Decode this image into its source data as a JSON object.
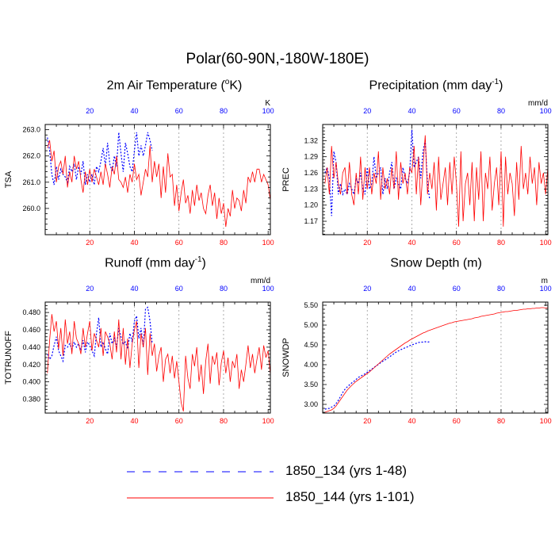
{
  "main_title": "Polar(60-90N,-180W-180E)",
  "legend": [
    {
      "label": "1850_134 (yrs 1-48)",
      "color": "#0000ff",
      "style": "dashed"
    },
    {
      "label": "1850_144 (yrs 1-101)",
      "color": "#ff0000",
      "style": "solid"
    }
  ],
  "chart_data": [
    {
      "type": "line",
      "title": "2m Air Temperature (",
      "title_sup": "o",
      "title_tail": "K)",
      "ylabel": "TSA",
      "top_unit": "K",
      "xlim": [
        0,
        101
      ],
      "ylim": [
        259.0,
        263.2
      ],
      "yticks": [
        "263.0",
        "262.0",
        "261.0",
        "260.0"
      ],
      "ytick_values": [
        263.0,
        262.0,
        261.0,
        260.0
      ],
      "xticks": [
        "20",
        "40",
        "60",
        "80",
        "100"
      ],
      "grid_x": [
        20,
        40,
        60,
        80
      ],
      "top_tick_color": "#0000ff",
      "bottom_tick_color": "#ff0000",
      "series": [
        {
          "color": "#0000ff",
          "style": "dashed",
          "values": [
            262.7,
            262.2,
            261.3,
            260.9,
            261.6,
            261.1,
            261.5,
            261.3,
            261.2,
            261.0,
            261.6,
            261.4,
            261.7,
            261.1,
            261.6,
            261.3,
            261.8,
            260.9,
            261.3,
            261.0,
            261.3,
            260.9,
            261.6,
            261.4,
            261.8,
            262.3,
            261.6,
            262.5,
            261.7,
            261.4,
            262.0,
            261.6,
            262.9,
            262.1,
            261.4,
            262.5,
            262.1,
            261.6,
            261.4,
            262.2,
            262.9,
            262.0,
            262.4,
            262.0,
            262.4,
            262.9,
            262.6,
            262.2
          ]
        },
        {
          "color": "#ff0000",
          "style": "solid",
          "values": [
            262.3,
            262.6,
            261.8,
            262.2,
            261.0,
            261.6,
            261.8,
            261.3,
            262.0,
            260.8,
            261.4,
            261.0,
            262.0,
            261.5,
            261.8,
            261.1,
            260.6,
            261.4,
            260.9,
            261.5,
            261.0,
            261.5,
            261.2,
            260.9,
            261.4,
            260.9,
            261.7,
            261.3,
            260.8,
            261.6,
            261.3,
            262.0,
            261.1,
            261.0,
            260.8,
            261.2,
            260.6,
            261.3,
            261.0,
            261.7,
            261.1,
            261.3,
            260.5,
            261.0,
            261.5,
            261.2,
            262.4,
            261.0,
            261.8,
            261.2,
            261.7,
            260.4,
            261.6,
            260.6,
            262.1,
            261.2,
            261.3,
            260.1,
            260.9,
            259.9,
            260.6,
            261.1,
            260.2,
            260.5,
            259.8,
            260.7,
            260.1,
            260.9,
            260.3,
            260.6,
            260.0,
            259.8,
            260.5,
            260.9,
            260.1,
            260.6,
            259.6,
            260.4,
            259.8,
            260.2,
            259.3,
            260.0,
            259.7,
            260.7,
            260.0,
            260.4,
            260.3,
            259.9,
            260.7,
            260.2,
            261.2,
            261.0,
            261.4,
            261.0,
            261.5,
            261.5,
            261.0,
            261.3,
            261.1,
            260.9,
            260.3
          ]
        }
      ]
    },
    {
      "type": "line",
      "title": "Precipitation (mm day",
      "title_sup": "-1",
      "title_tail": ")",
      "ylabel": "PREC",
      "top_unit": "mm/d",
      "xlim": [
        0,
        101
      ],
      "ylim": [
        1.145,
        1.35
      ],
      "yticks": [
        "1.32",
        "1.29",
        "1.26",
        "1.23",
        "1.20",
        "1.17"
      ],
      "ytick_values": [
        1.32,
        1.29,
        1.26,
        1.23,
        1.2,
        1.17
      ],
      "xticks": [
        "20",
        "40",
        "60",
        "80",
        "100"
      ],
      "grid_x": [
        20,
        40,
        60,
        80
      ],
      "top_tick_color": "#0000ff",
      "bottom_tick_color": "#ff0000",
      "series": [
        {
          "color": "#0000ff",
          "style": "dashed",
          "values": [
            1.26,
            1.27,
            1.25,
            1.18,
            1.3,
            1.28,
            1.22,
            1.24,
            1.22,
            1.23,
            1.22,
            1.24,
            1.23,
            1.22,
            1.25,
            1.24,
            1.26,
            1.23,
            1.22,
            1.27,
            1.23,
            1.24,
            1.29,
            1.25,
            1.26,
            1.27,
            1.22,
            1.25,
            1.23,
            1.26,
            1.28,
            1.23,
            1.25,
            1.24,
            1.23,
            1.27,
            1.25,
            1.24,
            1.26,
            1.34,
            1.27,
            1.28,
            1.29,
            1.25,
            1.3,
            1.32,
            1.24,
            1.21
          ]
        },
        {
          "color": "#ff0000",
          "style": "solid",
          "values": [
            1.24,
            1.27,
            1.22,
            1.31,
            1.25,
            1.28,
            1.24,
            1.22,
            1.26,
            1.27,
            1.22,
            1.28,
            1.22,
            1.2,
            1.26,
            1.22,
            1.29,
            1.21,
            1.27,
            1.23,
            1.27,
            1.22,
            1.26,
            1.24,
            1.3,
            1.21,
            1.27,
            1.23,
            1.25,
            1.22,
            1.27,
            1.23,
            1.3,
            1.21,
            1.28,
            1.24,
            1.26,
            1.22,
            1.27,
            1.26,
            1.31,
            1.22,
            1.29,
            1.2,
            1.27,
            1.33,
            1.22,
            1.26,
            1.23,
            1.28,
            1.19,
            1.29,
            1.21,
            1.24,
            1.27,
            1.2,
            1.28,
            1.22,
            1.29,
            1.24,
            1.16,
            1.3,
            1.17,
            1.24,
            1.26,
            1.2,
            1.28,
            1.17,
            1.27,
            1.21,
            1.3,
            1.17,
            1.26,
            1.23,
            1.29,
            1.19,
            1.24,
            1.27,
            1.2,
            1.3,
            1.16,
            1.29,
            1.22,
            1.26,
            1.24,
            1.18,
            1.28,
            1.21,
            1.31,
            1.23,
            1.26,
            1.22,
            1.29,
            1.24,
            1.27,
            1.2,
            1.28,
            1.24,
            1.26,
            1.22,
            1.27
          ]
        }
      ]
    },
    {
      "type": "line",
      "title": "Runoff (mm day",
      "title_sup": "-1",
      "title_tail": ")",
      "ylabel": "TOTRUNOFF",
      "top_unit": "mm/d",
      "xlim": [
        0,
        101
      ],
      "ylim": [
        0.364,
        0.492
      ],
      "yticks": [
        "0.480",
        "0.460",
        "0.440",
        "0.420",
        "0.400",
        "0.380"
      ],
      "ytick_values": [
        0.48,
        0.46,
        0.44,
        0.42,
        0.4,
        0.38
      ],
      "xticks": [
        "20",
        "40",
        "60",
        "80",
        "100"
      ],
      "grid_x": [
        20,
        40,
        60,
        80
      ],
      "top_tick_color": "#0000ff",
      "bottom_tick_color": "#ff0000",
      "series": [
        {
          "color": "#0000ff",
          "style": "dashed",
          "values": [
            0.432,
            0.426,
            0.43,
            0.442,
            0.452,
            0.436,
            0.43,
            0.424,
            0.442,
            0.44,
            0.444,
            0.438,
            0.446,
            0.44,
            0.444,
            0.436,
            0.448,
            0.434,
            0.446,
            0.442,
            0.436,
            0.43,
            0.456,
            0.474,
            0.44,
            0.446,
            0.438,
            0.432,
            0.456,
            0.444,
            0.45,
            0.44,
            0.462,
            0.452,
            0.444,
            0.446,
            0.438,
            0.456,
            0.446,
            0.47,
            0.476,
            0.45,
            0.462,
            0.44,
            0.484,
            0.486,
            0.47,
            0.444
          ]
        },
        {
          "color": "#ff0000",
          "style": "solid",
          "values": [
            0.41,
            0.448,
            0.478,
            0.458,
            0.47,
            0.438,
            0.462,
            0.43,
            0.472,
            0.444,
            0.458,
            0.432,
            0.47,
            0.45,
            0.444,
            0.432,
            0.462,
            0.44,
            0.456,
            0.47,
            0.436,
            0.456,
            0.448,
            0.44,
            0.462,
            0.43,
            0.458,
            0.452,
            0.444,
            0.426,
            0.458,
            0.434,
            0.472,
            0.426,
            0.462,
            0.42,
            0.45,
            0.416,
            0.444,
            0.46,
            0.47,
            0.416,
            0.456,
            0.44,
            0.462,
            0.408,
            0.456,
            0.43,
            0.444,
            0.412,
            0.43,
            0.44,
            0.4,
            0.426,
            0.432,
            0.41,
            0.43,
            0.404,
            0.424,
            0.4,
            0.376,
            0.366,
            0.43,
            0.404,
            0.392,
            0.432,
            0.418,
            0.44,
            0.4,
            0.42,
            0.386,
            0.424,
            0.444,
            0.398,
            0.43,
            0.42,
            0.434,
            0.396,
            0.422,
            0.436,
            0.41,
            0.428,
            0.4,
            0.424,
            0.416,
            0.432,
            0.392,
            0.414,
            0.4,
            0.42,
            0.442,
            0.416,
            0.432,
            0.41,
            0.426,
            0.44,
            0.414,
            0.442,
            0.428,
            0.436,
            0.408
          ]
        }
      ]
    },
    {
      "type": "line",
      "title": "Snow Depth (m)",
      "title_sup": "",
      "title_tail": "",
      "ylabel": "SNOWDP",
      "top_unit": "m",
      "xlim": [
        0,
        101
      ],
      "ylim": [
        2.78,
        5.58
      ],
      "yticks": [
        "5.50",
        "5.00",
        "4.50",
        "4.00",
        "3.50",
        "3.00"
      ],
      "ytick_values": [
        5.5,
        5.0,
        4.5,
        4.0,
        3.5,
        3.0
      ],
      "xticks": [
        "20",
        "40",
        "60",
        "80",
        "100"
      ],
      "grid_x": [
        20,
        40,
        60,
        80
      ],
      "top_tick_color": "#0000ff",
      "bottom_tick_color": "#ff0000",
      "series": [
        {
          "color": "#0000ff",
          "style": "dashed",
          "values": [
            2.88,
            2.89,
            2.9,
            2.93,
            2.96,
            3.02,
            3.1,
            3.2,
            3.3,
            3.38,
            3.44,
            3.49,
            3.54,
            3.58,
            3.63,
            3.68,
            3.71,
            3.74,
            3.77,
            3.81,
            3.85,
            3.89,
            3.93,
            3.97,
            4.01,
            4.05,
            4.09,
            4.12,
            4.16,
            4.2,
            4.24,
            4.28,
            4.32,
            4.35,
            4.38,
            4.4,
            4.43,
            4.45,
            4.48,
            4.5,
            4.52,
            4.54,
            4.56,
            4.57,
            4.57,
            4.58,
            4.57,
            4.58
          ]
        },
        {
          "color": "#ff0000",
          "style": "solid",
          "values": [
            2.8,
            2.82,
            2.84,
            2.86,
            2.9,
            2.96,
            3.04,
            3.12,
            3.2,
            3.28,
            3.36,
            3.42,
            3.48,
            3.53,
            3.58,
            3.62,
            3.66,
            3.7,
            3.74,
            3.78,
            3.82,
            3.87,
            3.92,
            3.97,
            4.02,
            4.07,
            4.12,
            4.17,
            4.22,
            4.27,
            4.31,
            4.35,
            4.39,
            4.43,
            4.47,
            4.51,
            4.55,
            4.58,
            4.62,
            4.65,
            4.68,
            4.71,
            4.74,
            4.77,
            4.8,
            4.82,
            4.85,
            4.87,
            4.89,
            4.91,
            4.93,
            4.95,
            4.97,
            4.99,
            5.01,
            5.03,
            5.05,
            5.06,
            5.08,
            5.09,
            5.1,
            5.11,
            5.12,
            5.13,
            5.14,
            5.15,
            5.16,
            5.18,
            5.19,
            5.2,
            5.22,
            5.23,
            5.24,
            5.25,
            5.26,
            5.27,
            5.28,
            5.3,
            5.31,
            5.32,
            5.33,
            5.34,
            5.34,
            5.35,
            5.36,
            5.37,
            5.37,
            5.38,
            5.39,
            5.4,
            5.4,
            5.41,
            5.41,
            5.42,
            5.42,
            5.43,
            5.43,
            5.44,
            5.44,
            5.43,
            5.44
          ]
        }
      ]
    }
  ]
}
